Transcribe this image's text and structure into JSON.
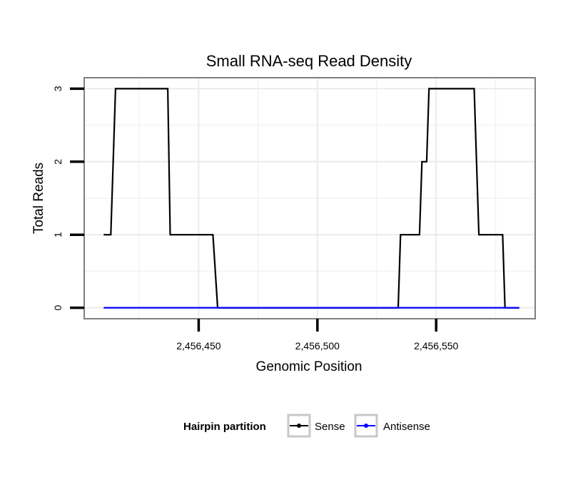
{
  "chart_data": {
    "type": "line",
    "title": "Small RNA-seq Read Density",
    "xlabel": "Genomic Position",
    "ylabel": "Total Reads",
    "xlim": [
      2456401.8,
      2456591.7
    ],
    "ylim": [
      -0.15,
      3.15
    ],
    "x_ticks": [
      2456450,
      2456500,
      2456550
    ],
    "x_tick_labels": [
      "2,456,450",
      "2,456,500",
      "2,456,550"
    ],
    "y_ticks": [
      0,
      1,
      2,
      3
    ],
    "y_tick_labels": [
      "0",
      "1",
      "2",
      "3"
    ],
    "grid": true,
    "legend": {
      "title": "Hairpin partition",
      "position": "bottom",
      "entries": [
        "Sense",
        "Antisense"
      ]
    },
    "series": [
      {
        "name": "Sense",
        "color": "#000000",
        "x": [
          2456410,
          2456413,
          2456415,
          2456437,
          2456438,
          2456456,
          2456458,
          2456534,
          2456535,
          2456543,
          2456544,
          2456546,
          2456547,
          2456566,
          2456568,
          2456578,
          2456579,
          2456585
        ],
        "y": [
          1,
          1,
          3,
          3,
          1,
          1,
          0,
          0,
          1,
          1,
          2,
          2,
          3,
          3,
          1,
          1,
          0,
          0
        ]
      },
      {
        "name": "Antisense",
        "color": "#0000ff",
        "x": [
          2456410,
          2456585
        ],
        "y": [
          0,
          0
        ]
      }
    ]
  }
}
